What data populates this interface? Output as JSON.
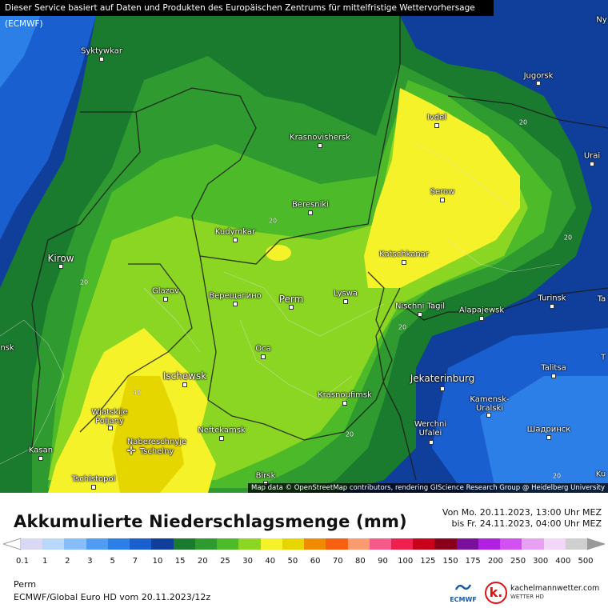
{
  "banner": "Dieser Service basiert auf Daten und Produkten des Europäischen Zentrums für mittelfristige Wettervorhersage (ECMWF)",
  "attribution": "Map data © OpenStreetMap contributors, rendering GIScience Research Group @ Heidelberg University",
  "title": "Akkumulierte Niederschlagsmenge (mm)",
  "period_from": "Von Mo. 20.11.2023, 13:00 Uhr MEZ",
  "period_to": "bis Fr. 24.11.2023, 04:00 Uhr MEZ",
  "location": "Perm",
  "model": "ECMWF/Global Euro HD vom 20.11.2023/12z",
  "brand": {
    "ecmwf": "ECMWF",
    "site": "kachelmannwetter.com",
    "site_sub": "WETTER HD",
    "k": "k."
  },
  "legend": {
    "labels": [
      "0.1",
      "1",
      "2",
      "3",
      "5",
      "7",
      "10",
      "15",
      "20",
      "25",
      "30",
      "40",
      "50",
      "60",
      "70",
      "80",
      "90",
      "100",
      "125",
      "150",
      "175",
      "200",
      "250",
      "300",
      "400",
      "500"
    ],
    "colors": [
      "#d9d9f5",
      "#b8d8fb",
      "#86bdf8",
      "#4f9cf2",
      "#2d7fe8",
      "#1a5fd0",
      "#0f3f9a",
      "#1a7a2e",
      "#2f9a2f",
      "#4dba2a",
      "#8ad622",
      "#f6f22a",
      "#e6d600",
      "#f08a00",
      "#f66010",
      "#f99a70",
      "#f65a8a",
      "#ef2050",
      "#c8001a",
      "#8a001a",
      "#7a0f9a",
      "#b020e0",
      "#d050f0",
      "#e8a0f4",
      "#f2d6f8",
      "#cfcfcf"
    ]
  },
  "cities": [
    {
      "name": "Syktywkar"
    },
    {
      "name": "Kirow"
    },
    {
      "name": "Krasnovishersk"
    },
    {
      "name": "Beresniki"
    },
    {
      "name": "Kudymkar"
    },
    {
      "name": "Glazov"
    },
    {
      "name": "Верещагино"
    },
    {
      "name": "Perm"
    },
    {
      "name": "Lyswa"
    },
    {
      "name": "Оса"
    },
    {
      "name": "Ischewsk"
    },
    {
      "name": "Wjatskije Poljany"
    },
    {
      "name": "Krasnoufimsk"
    },
    {
      "name": "Neftekamsk"
    },
    {
      "name": "Nabereschnyje Tschelny"
    },
    {
      "name": "Kasan"
    },
    {
      "name": "Tschistopol"
    },
    {
      "name": "Birsk"
    },
    {
      "name": "Ivdel"
    },
    {
      "name": "Serow"
    },
    {
      "name": "Katschkanar"
    },
    {
      "name": "Nischni Tagil"
    },
    {
      "name": "Alapajewsk"
    },
    {
      "name": "Jekaterinburg"
    },
    {
      "name": "Kamensk-Uralski"
    },
    {
      "name": "Werchni Ufalei"
    },
    {
      "name": "Jugorsk"
    },
    {
      "name": "Urai"
    },
    {
      "name": "Turinsk"
    },
    {
      "name": "Talitsa"
    },
    {
      "name": "Шадринск"
    },
    {
      "name": "Ny"
    },
    {
      "name": "Ta"
    },
    {
      "name": "T"
    },
    {
      "name": "nsk"
    },
    {
      "name": "Ku"
    }
  ],
  "isolines": [
    "20",
    "20",
    "20",
    "20",
    "20",
    "20",
    "20",
    "40"
  ]
}
